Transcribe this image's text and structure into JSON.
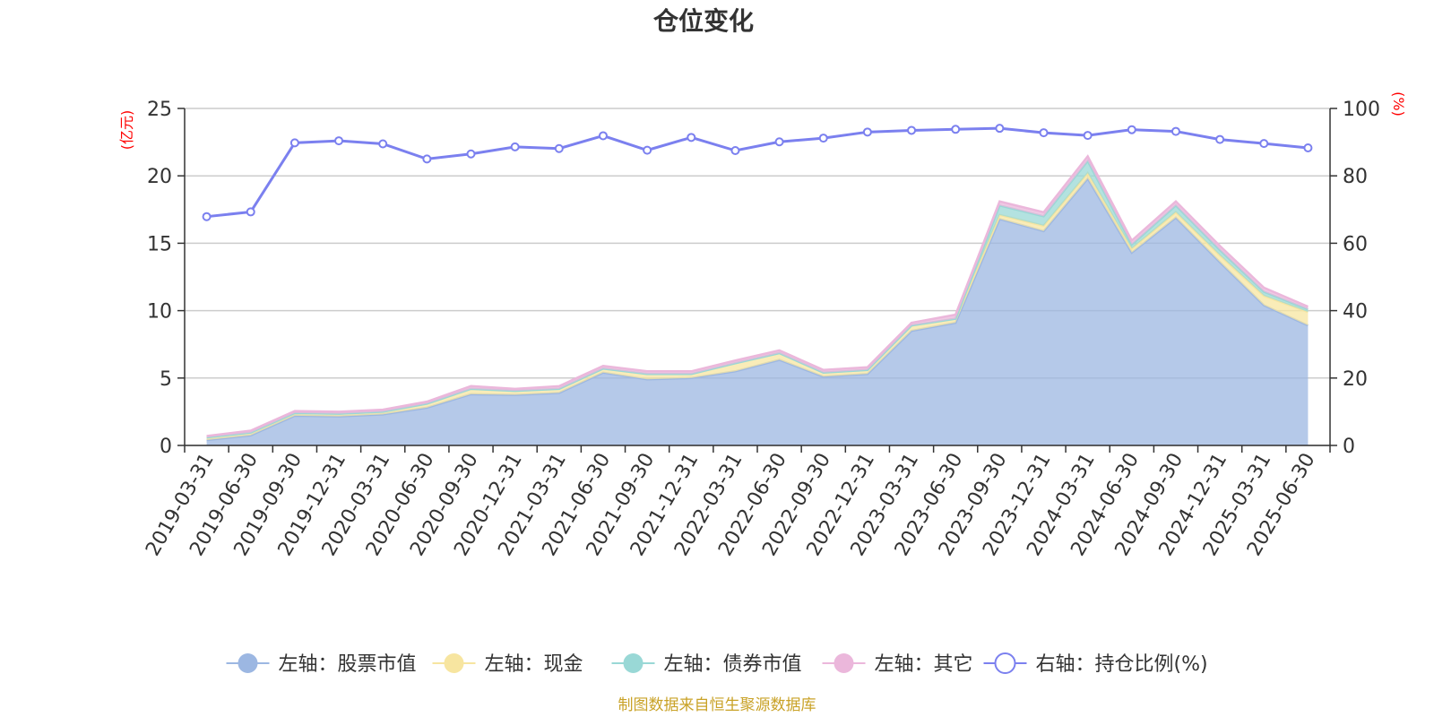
{
  "chart_data": {
    "type": "area",
    "title": "仓位变化",
    "source": "制图数据来自恒生聚源数据库",
    "left_axis": {
      "unit": "(亿元)",
      "ylim": [
        0,
        25
      ],
      "ticks": [
        "0",
        "5",
        "10",
        "15",
        "20",
        "25"
      ]
    },
    "right_axis": {
      "unit": "(%)",
      "ylim": [
        0,
        100
      ],
      "ticks": [
        "0",
        "20",
        "40",
        "60",
        "80",
        "100"
      ]
    },
    "grid": true,
    "legend_position": "bottom",
    "categories": [
      "2019-03-31",
      "2019-06-30",
      "2019-09-30",
      "2019-12-31",
      "2020-03-31",
      "2020-06-30",
      "2020-09-30",
      "2020-12-31",
      "2021-03-31",
      "2021-06-30",
      "2021-09-30",
      "2021-12-31",
      "2022-03-31",
      "2022-06-30",
      "2022-09-30",
      "2022-12-31",
      "2023-03-31",
      "2023-06-30",
      "2023-09-30",
      "2023-12-31",
      "2024-03-31",
      "2024-06-30",
      "2024-09-30",
      "2024-12-31",
      "2025-03-31",
      "2025-06-30"
    ],
    "series": [
      {
        "name": "左轴：股票市值",
        "axis": "left",
        "kind": "area",
        "color": "#9cb7e2",
        "values": [
          0.4,
          0.75,
          2.2,
          2.15,
          2.3,
          2.8,
          3.8,
          3.75,
          3.9,
          5.4,
          4.9,
          5.0,
          5.5,
          6.35,
          5.1,
          5.3,
          8.5,
          9.1,
          16.8,
          15.9,
          19.8,
          14.3,
          16.9,
          13.6,
          10.4,
          8.9
        ]
      },
      {
        "name": "左轴：现金",
        "axis": "left",
        "kind": "area",
        "color": "#f7e5a0",
        "values": [
          0.2,
          0.2,
          0.2,
          0.2,
          0.2,
          0.3,
          0.4,
          0.3,
          0.3,
          0.3,
          0.4,
          0.3,
          0.6,
          0.5,
          0.3,
          0.3,
          0.4,
          0.3,
          0.3,
          0.4,
          0.4,
          0.3,
          0.4,
          0.5,
          0.7,
          1.0
        ]
      },
      {
        "name": "左轴：债券市值",
        "axis": "left",
        "kind": "area",
        "color": "#99d8d6",
        "values": [
          0,
          0,
          0,
          0,
          0,
          0,
          0,
          0,
          0,
          0,
          0,
          0,
          0,
          0,
          0,
          0,
          0,
          0,
          0.7,
          0.7,
          0.9,
          0.3,
          0.5,
          0.4,
          0.3,
          0.2
        ]
      },
      {
        "name": "左轴：其它",
        "axis": "left",
        "kind": "area",
        "color": "#ebb7db",
        "values": [
          0.1,
          0.15,
          0.15,
          0.15,
          0.15,
          0.15,
          0.2,
          0.15,
          0.2,
          0.2,
          0.2,
          0.2,
          0.2,
          0.2,
          0.2,
          0.2,
          0.2,
          0.3,
          0.3,
          0.3,
          0.35,
          0.3,
          0.3,
          0.3,
          0.3,
          0.2
        ]
      },
      {
        "name": "右轴：持仓比例(%)",
        "axis": "right",
        "kind": "line",
        "color": "#7b80ef",
        "values": [
          67.9,
          69.3,
          89.8,
          90.4,
          89.5,
          85.0,
          86.5,
          88.6,
          88.1,
          91.9,
          87.6,
          91.4,
          87.5,
          90.1,
          91.2,
          93.0,
          93.5,
          93.8,
          94.1,
          92.8,
          92.0,
          93.7,
          93.2,
          90.8,
          89.6,
          88.3
        ]
      }
    ]
  }
}
